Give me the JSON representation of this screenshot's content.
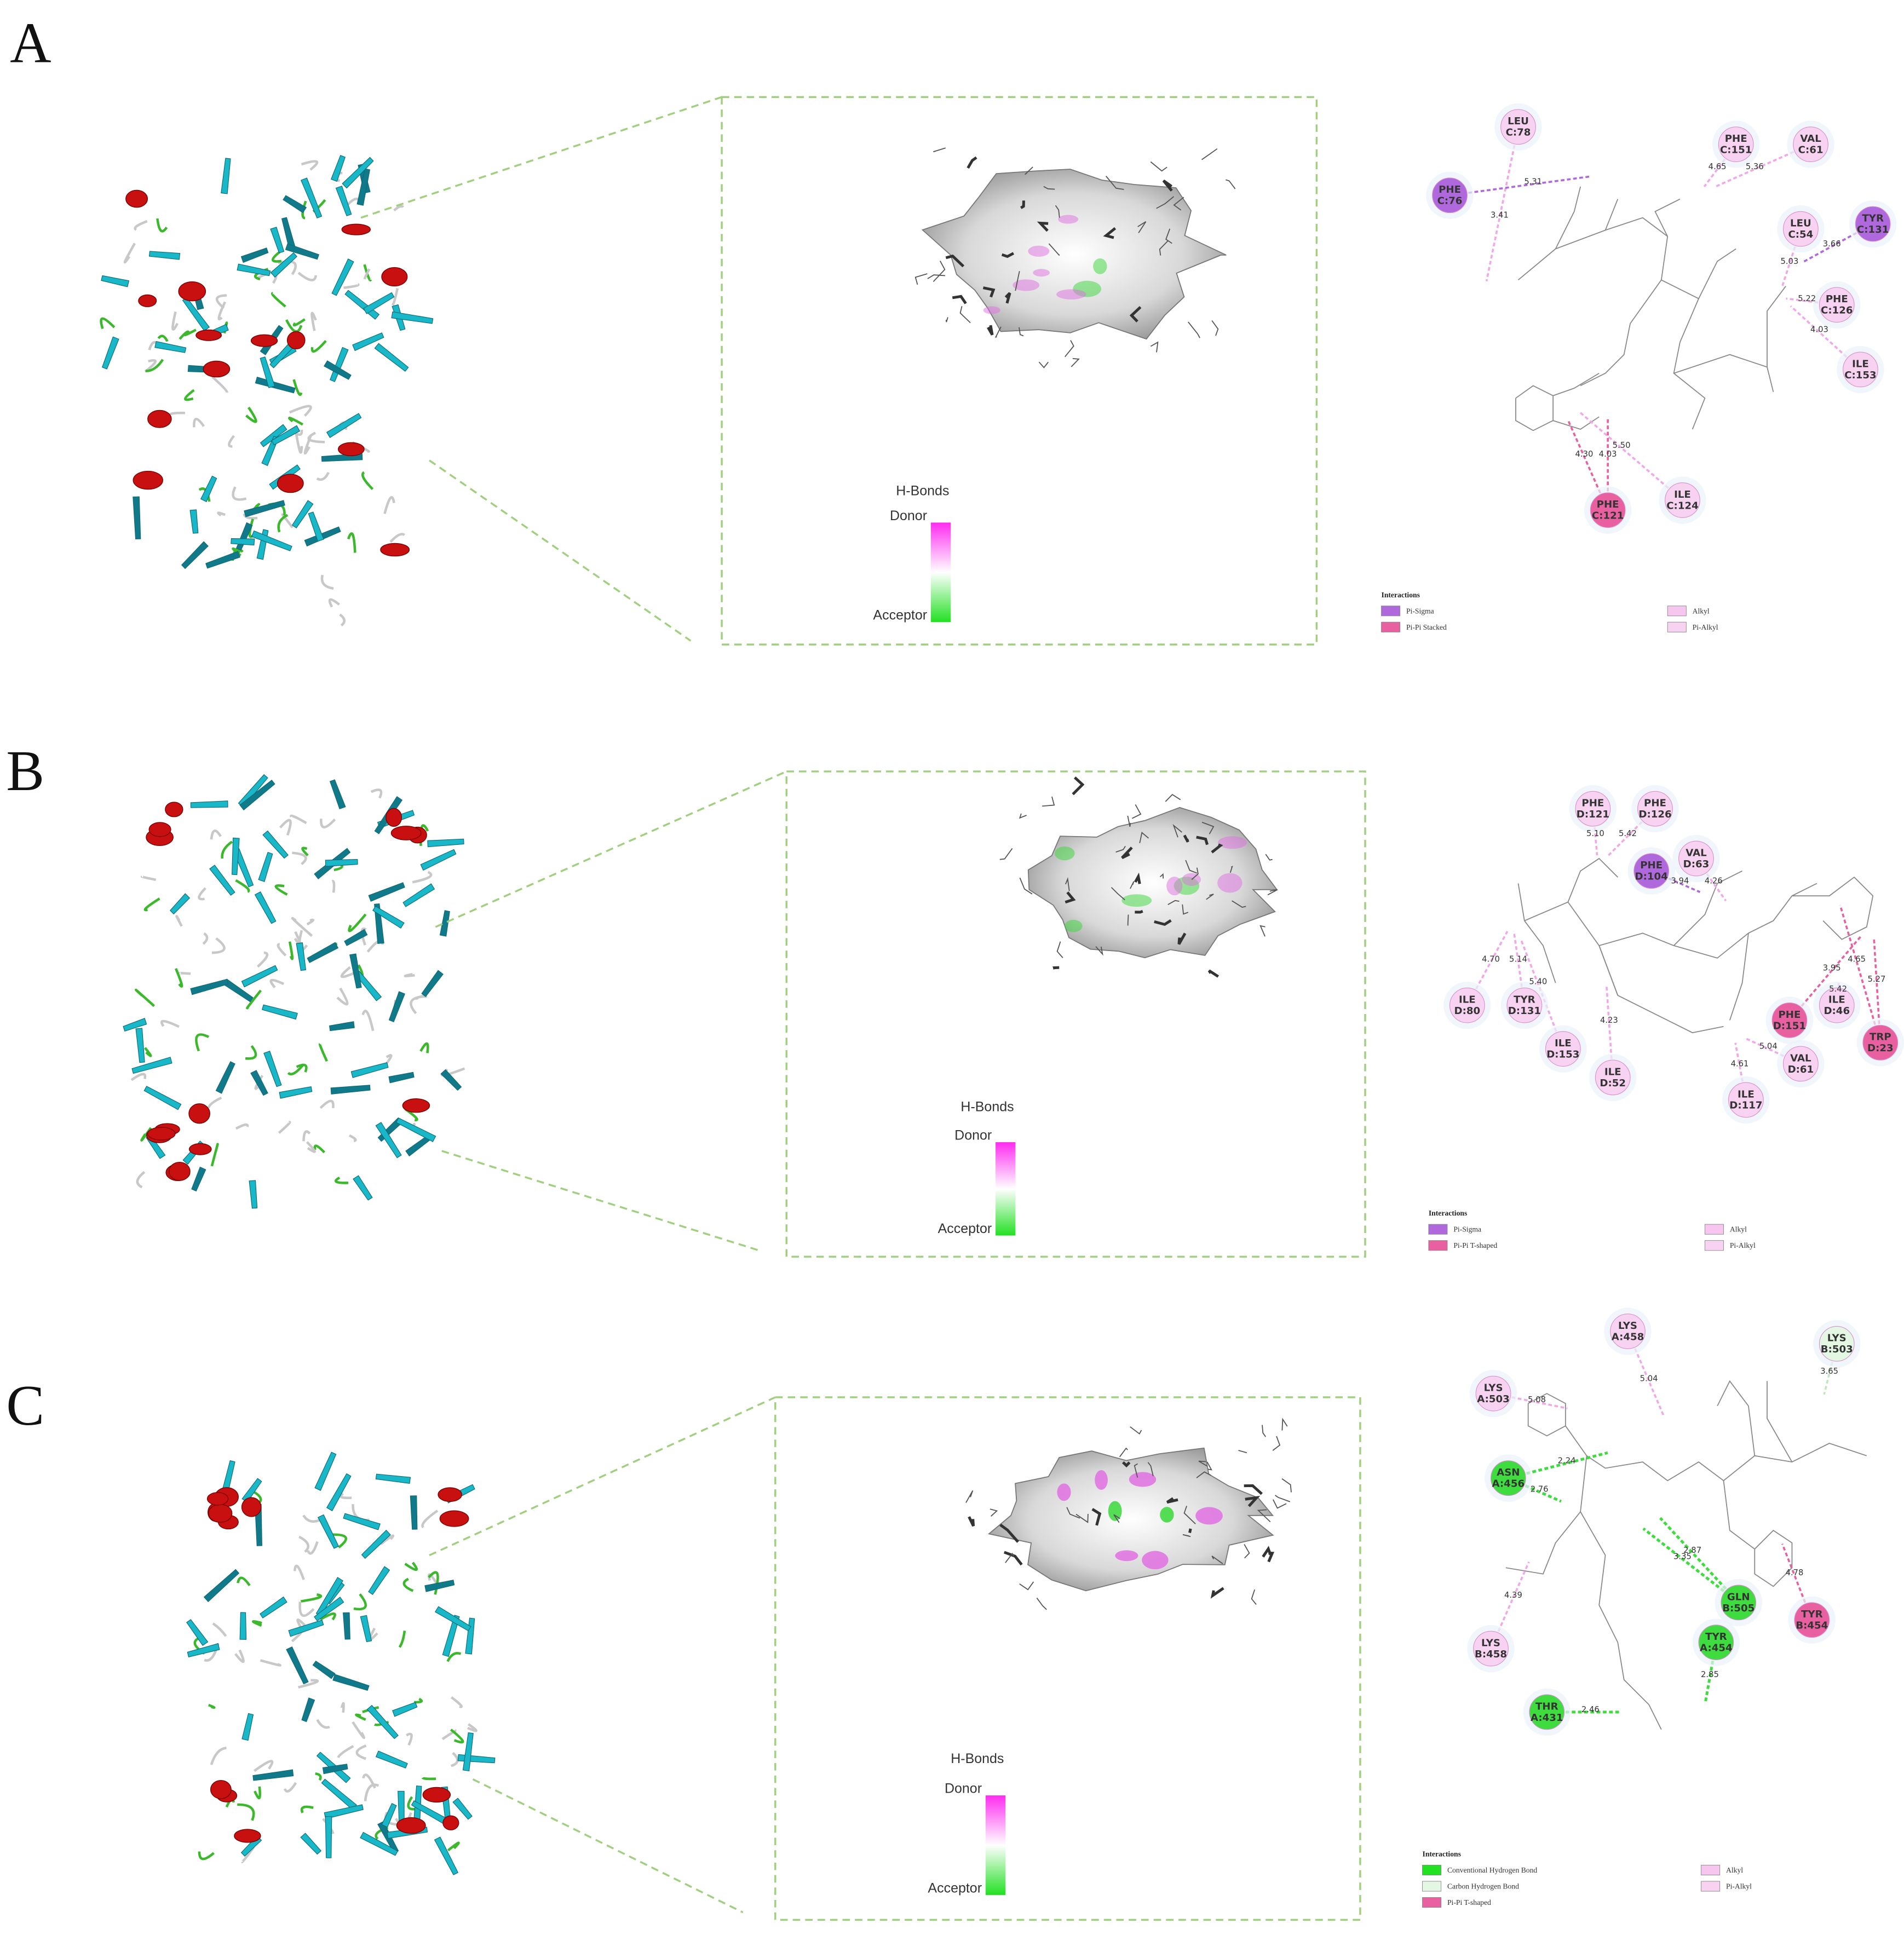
{
  "panels": [
    {
      "label": "A",
      "hbond_legend": {
        "title": "H-Bonds",
        "donor": "Donor",
        "acceptor": "Acceptor"
      },
      "residues": [
        {
          "name": "LEU",
          "chain": "C:78",
          "color": "#f7d3f1"
        },
        {
          "name": "PHE",
          "chain": "C:76",
          "color": "#b068dd"
        },
        {
          "name": "PHE",
          "chain": "C:151",
          "color": "#f7d3f1"
        },
        {
          "name": "VAL",
          "chain": "C:61",
          "color": "#f7d3f1"
        },
        {
          "name": "LEU",
          "chain": "C:54",
          "color": "#f7d3f1"
        },
        {
          "name": "TYR",
          "chain": "C:131",
          "color": "#b068dd"
        },
        {
          "name": "PHE",
          "chain": "C:126",
          "color": "#f7d3f1"
        },
        {
          "name": "ILE",
          "chain": "C:153",
          "color": "#f7d3f1"
        },
        {
          "name": "ILE",
          "chain": "C:124",
          "color": "#f7d3f1"
        },
        {
          "name": "PHE",
          "chain": "C:121",
          "color": "#e8609f"
        }
      ],
      "distances": [
        "3.41",
        "5.31",
        "4.65",
        "5.36",
        "5.03",
        "3.66",
        "5.22",
        "4.03",
        "5.50",
        "4.30",
        "4.03"
      ],
      "interactions": {
        "title": "Interactions",
        "items": [
          {
            "name": "Pi-Sigma",
            "color": "#b068dd"
          },
          {
            "name": "Pi-Pi Stacked",
            "color": "#e8609f"
          },
          {
            "name": "Alkyl",
            "color": "#f7c6ef"
          },
          {
            "name": "Pi-Alkyl",
            "color": "#f7d3f1"
          }
        ]
      }
    },
    {
      "label": "B",
      "hbond_legend": {
        "title": "H-Bonds",
        "donor": "Donor",
        "acceptor": "Acceptor"
      },
      "residues": [
        {
          "name": "PHE",
          "chain": "D:121",
          "color": "#f7d3f1"
        },
        {
          "name": "PHE",
          "chain": "D:126",
          "color": "#f7d3f1"
        },
        {
          "name": "PHE",
          "chain": "D:104",
          "color": "#b068dd"
        },
        {
          "name": "VAL",
          "chain": "D:63",
          "color": "#f7d3f1"
        },
        {
          "name": "ILE",
          "chain": "D:80",
          "color": "#f7d3f1"
        },
        {
          "name": "TYR",
          "chain": "D:131",
          "color": "#f7d3f1"
        },
        {
          "name": "ILE",
          "chain": "D:153",
          "color": "#f7d3f1"
        },
        {
          "name": "ILE",
          "chain": "D:52",
          "color": "#f7d3f1"
        },
        {
          "name": "ILE",
          "chain": "D:117",
          "color": "#f7d3f1"
        },
        {
          "name": "VAL",
          "chain": "D:61",
          "color": "#f7d3f1"
        },
        {
          "name": "PHE",
          "chain": "D:151",
          "color": "#e8609f"
        },
        {
          "name": "ILE",
          "chain": "D:46",
          "color": "#f7d3f1"
        },
        {
          "name": "TRP",
          "chain": "D:23",
          "color": "#e8609f"
        }
      ],
      "distances": [
        "5.10",
        "5.42",
        "3.94",
        "4.26",
        "4.70",
        "5.14",
        "5.40",
        "4.23",
        "5.04",
        "4.61",
        "3.95",
        "4.65",
        "5.42",
        "5.27"
      ],
      "interactions": {
        "title": "Interactions",
        "items": [
          {
            "name": "Pi-Sigma",
            "color": "#b068dd"
          },
          {
            "name": "Pi-Pi T-shaped",
            "color": "#e8609f"
          },
          {
            "name": "Alkyl",
            "color": "#f7c6ef"
          },
          {
            "name": "Pi-Alkyl",
            "color": "#f7d3f1"
          }
        ]
      }
    },
    {
      "label": "C",
      "hbond_legend": {
        "title": "H-Bonds",
        "donor": "Donor",
        "acceptor": "Acceptor"
      },
      "residues": [
        {
          "name": "LYS",
          "chain": "A:458",
          "color": "#f7d3f1"
        },
        {
          "name": "LYS",
          "chain": "B:503",
          "color": "#e3f7e3"
        },
        {
          "name": "LYS",
          "chain": "A:503",
          "color": "#f7d3f1"
        },
        {
          "name": "ASN",
          "chain": "A:456",
          "color": "#3fdc3f"
        },
        {
          "name": "GLN",
          "chain": "B:505",
          "color": "#3fdc3f"
        },
        {
          "name": "TYR",
          "chain": "B:454",
          "color": "#e8609f"
        },
        {
          "name": "TYR",
          "chain": "A:454",
          "color": "#3fdc3f"
        },
        {
          "name": "LYS",
          "chain": "B:458",
          "color": "#f7d3f1"
        },
        {
          "name": "THR",
          "chain": "A:431",
          "color": "#3fdc3f"
        }
      ],
      "distances": [
        "5.04",
        "3.65",
        "5.08",
        "2.24",
        "2.76",
        "2.87",
        "3.35",
        "4.78",
        "4.39",
        "2.85",
        "2.46"
      ],
      "interactions": {
        "title": "Interactions",
        "items": [
          {
            "name": "Conventional Hydrogen Bond",
            "color": "#22e022"
          },
          {
            "name": "Carbon Hydrogen Bond",
            "color": "#e3f7e3"
          },
          {
            "name": "Pi-Pi T-shaped",
            "color": "#e8609f"
          },
          {
            "name": "Alkyl",
            "color": "#f7c6ef"
          },
          {
            "name": "Pi-Alkyl",
            "color": "#f7d3f1"
          }
        ]
      }
    }
  ]
}
